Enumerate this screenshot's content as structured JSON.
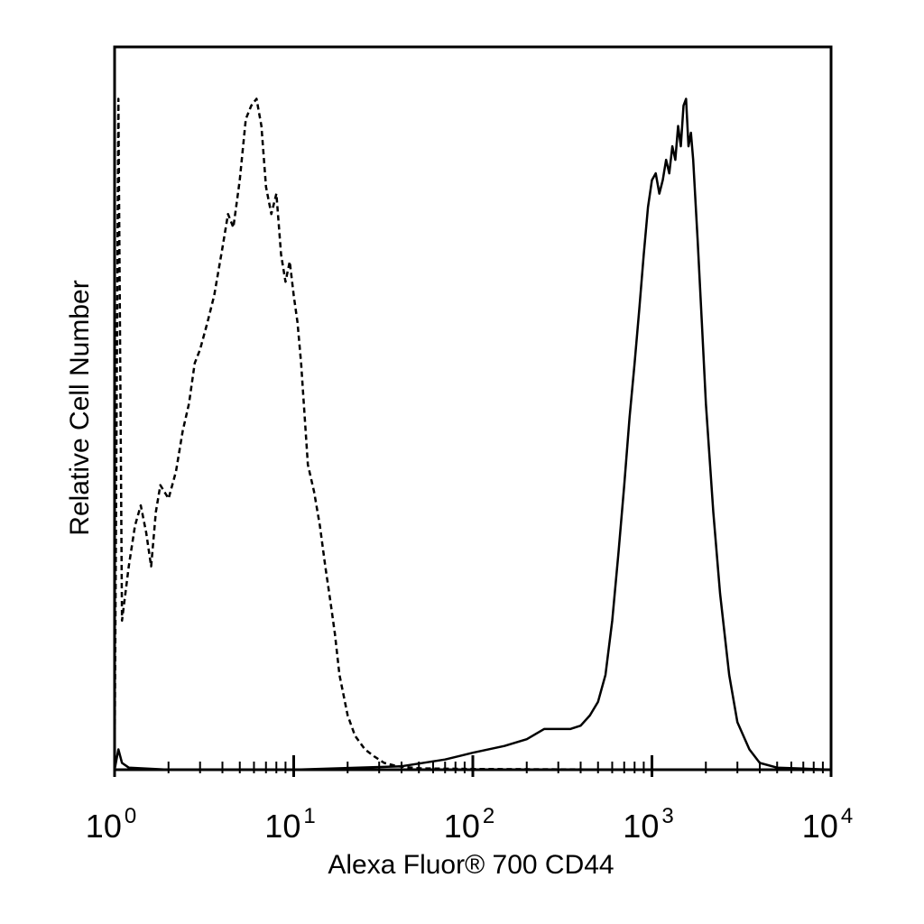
{
  "chart_data": {
    "type": "line",
    "title": "",
    "xlabel": "Alexa Fluor® 700 CD44",
    "ylabel": "Relative Cell Number",
    "x_scale": "log",
    "xlim": [
      1,
      10000
    ],
    "ylim": [
      0,
      100
    ],
    "x_ticks": [
      {
        "base": "10",
        "exp": "0",
        "value": 1
      },
      {
        "base": "10",
        "exp": "1",
        "value": 10
      },
      {
        "base": "10",
        "exp": "2",
        "value": 100
      },
      {
        "base": "10",
        "exp": "3",
        "value": 1000
      },
      {
        "base": "10",
        "exp": "4",
        "value": 10000
      }
    ],
    "grid": false,
    "legend": "none",
    "series": [
      {
        "line_style": "dashed",
        "color": "#000000",
        "x": [
          1.0,
          1.05,
          1.1,
          1.2,
          1.3,
          1.4,
          1.5,
          1.6,
          1.7,
          1.8,
          2.0,
          2.2,
          2.4,
          2.6,
          2.8,
          3.0,
          3.3,
          3.6,
          4.0,
          4.3,
          4.6,
          5.0,
          5.4,
          5.8,
          6.2,
          6.6,
          7.0,
          7.5,
          8.0,
          8.5,
          9.0,
          9.5,
          10.0,
          10.5,
          11.0,
          12.0,
          13.0,
          14.0,
          15.0,
          16.0,
          17.0,
          18.0,
          20.0,
          22.0,
          25.0,
          28.0,
          32.0,
          38.0,
          50.0,
          100.0,
          1000.0,
          10000.0
        ],
        "y": [
          0,
          99,
          22,
          30,
          36,
          39,
          35,
          30,
          38,
          42,
          40,
          44,
          50,
          54,
          60,
          62,
          66,
          70,
          77,
          82,
          80,
          87,
          96,
          98,
          99,
          95,
          86,
          82,
          85,
          76,
          72,
          75,
          70,
          66,
          60,
          45,
          41,
          36,
          30,
          25,
          20,
          14,
          8,
          5,
          3,
          2,
          1,
          0.5,
          0.2,
          0.1,
          0,
          0
        ]
      },
      {
        "line_style": "solid",
        "color": "#000000",
        "x": [
          1.0,
          1.05,
          1.1,
          1.2,
          2.0,
          10.0,
          40.0,
          70.0,
          100.0,
          150.0,
          200.0,
          250.0,
          300.0,
          350.0,
          400.0,
          450.0,
          500.0,
          550.0,
          600.0,
          650.0,
          700.0,
          750.0,
          800.0,
          850.0,
          900.0,
          950.0,
          1000.0,
          1050.0,
          1100.0,
          1150.0,
          1200.0,
          1250.0,
          1300.0,
          1350.0,
          1400.0,
          1450.0,
          1500.0,
          1550.0,
          1600.0,
          1650.0,
          1700.0,
          1800.0,
          1900.0,
          2000.0,
          2200.0,
          2400.0,
          2700.0,
          3000.0,
          3500.0,
          4000.0,
          5000.0,
          10000.0
        ],
        "y": [
          0,
          3,
          1,
          0.3,
          0,
          0,
          0.5,
          1.5,
          2.5,
          3.5,
          4.5,
          6,
          6,
          6,
          6.5,
          8,
          10,
          14,
          22,
          32,
          42,
          52,
          60,
          68,
          76,
          83,
          87,
          88,
          85,
          87,
          90,
          88,
          92,
          90,
          95,
          92,
          98,
          99,
          92,
          94,
          90,
          78,
          66,
          54,
          38,
          26,
          14,
          7,
          3,
          1,
          0.3,
          0
        ]
      }
    ]
  }
}
